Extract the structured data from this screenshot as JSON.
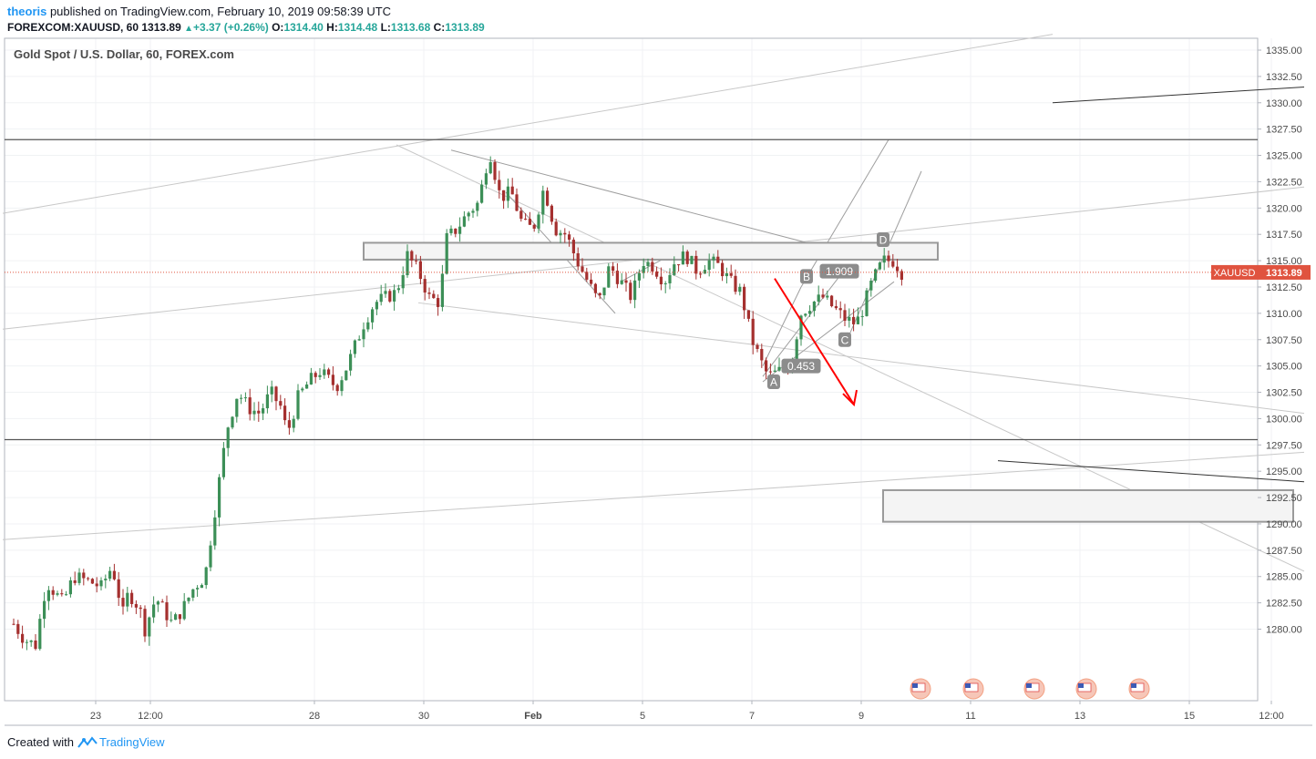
{
  "header": {
    "author": "theoris",
    "published_text": " published on TradingView.com, February 10, 2019 09:58:39 UTC"
  },
  "quote": {
    "symbol": "FOREXCOM:XAUUSD, 60",
    "last": "1313.89",
    "change": "+3.37 (+0.26%)",
    "o_label": "O:",
    "o": "1314.40",
    "h_label": "H:",
    "h": "1314.48",
    "l_label": "L:",
    "l": "1313.68",
    "c_label": "C:",
    "c": "1313.89"
  },
  "pane_title": "Gold Spot / U.S. Dollar, 60, FOREX.com",
  "footer": {
    "created_with": "Created with",
    "brand": "TradingView"
  },
  "colors": {
    "up": "#26a69a",
    "down": "#ef5350",
    "candle_up": "#3c8f57",
    "candle_down": "#a5302f",
    "arrow": "#ff0000",
    "price_label": "#e0533f"
  },
  "chart_data": {
    "type": "candlestick",
    "symbol": "XAUUSD",
    "interval": "60",
    "last_price": 1313.89,
    "price_label": "XAUUSD",
    "ylim": [
      1277.5,
      1336.0
    ],
    "y_ticks": [
      "1335.00",
      "1332.50",
      "1330.00",
      "1327.50",
      "1325.00",
      "1322.50",
      "1320.00",
      "1317.50",
      "1315.00",
      "1312.50",
      "1310.00",
      "1307.50",
      "1305.00",
      "1302.50",
      "1300.00",
      "1297.50",
      "1295.00",
      "1292.50",
      "1290.00",
      "1287.50",
      "1285.00",
      "1282.50",
      "1280.00"
    ],
    "x_ticks": [
      {
        "label": "23",
        "day": 0.75
      },
      {
        "label": "12:00",
        "day": 1.25
      },
      {
        "label": "28",
        "day": 2.75
      },
      {
        "label": "30",
        "day": 3.75
      },
      {
        "label": "Feb",
        "day": 4.75
      },
      {
        "label": "5",
        "day": 5.75
      },
      {
        "label": "7",
        "day": 6.75
      },
      {
        "label": "9",
        "day": 7.75
      },
      {
        "label": "11",
        "day": 8.75
      },
      {
        "label": "13",
        "day": 9.75
      },
      {
        "label": "15",
        "day": 10.75
      },
      {
        "label": "12:00",
        "day": 11.5
      }
    ],
    "price_path": [
      [
        0.0,
        1280.5
      ],
      [
        0.1,
        1279.0
      ],
      [
        0.2,
        1278.5
      ],
      [
        0.3,
        1284.5
      ],
      [
        0.45,
        1282.5
      ],
      [
        0.55,
        1285.0
      ],
      [
        0.7,
        1284.5
      ],
      [
        0.8,
        1284.0
      ],
      [
        0.9,
        1286.0
      ],
      [
        1.0,
        1281.5
      ],
      [
        1.05,
        1283.5
      ],
      [
        1.15,
        1282.0
      ],
      [
        1.2,
        1280.0
      ],
      [
        1.3,
        1283.0
      ],
      [
        1.45,
        1280.5
      ],
      [
        1.55,
        1282.0
      ],
      [
        1.65,
        1284.0
      ],
      [
        1.75,
        1285.0
      ],
      [
        1.85,
        1292.0
      ],
      [
        1.95,
        1299.0
      ],
      [
        2.05,
        1302.5
      ],
      [
        2.15,
        1301.0
      ],
      [
        2.25,
        1300.5
      ],
      [
        2.35,
        1302.5
      ],
      [
        2.45,
        1301.0
      ],
      [
        2.5,
        1298.5
      ],
      [
        2.6,
        1302.0
      ],
      [
        2.7,
        1303.5
      ],
      [
        2.8,
        1304.5
      ],
      [
        2.95,
        1303.0
      ],
      [
        3.05,
        1305.0
      ],
      [
        3.2,
        1309.0
      ],
      [
        3.3,
        1311.0
      ],
      [
        3.4,
        1311.5
      ],
      [
        3.5,
        1312.0
      ],
      [
        3.6,
        1315.5
      ],
      [
        3.7,
        1314.0
      ],
      [
        3.8,
        1311.5
      ],
      [
        3.9,
        1311.0
      ],
      [
        3.95,
        1317.0
      ],
      [
        4.05,
        1318.0
      ],
      [
        4.15,
        1319.5
      ],
      [
        4.25,
        1320.5
      ],
      [
        4.35,
        1325.5
      ],
      [
        4.45,
        1321.0
      ],
      [
        4.55,
        1321.5
      ],
      [
        4.65,
        1318.5
      ],
      [
        4.75,
        1318.0
      ],
      [
        4.85,
        1322.0
      ],
      [
        4.95,
        1318.0
      ],
      [
        5.05,
        1317.5
      ],
      [
        5.15,
        1315.0
      ],
      [
        5.25,
        1313.0
      ],
      [
        5.35,
        1311.0
      ],
      [
        5.45,
        1314.5
      ],
      [
        5.55,
        1313.0
      ],
      [
        5.65,
        1311.5
      ],
      [
        5.75,
        1315.0
      ],
      [
        5.85,
        1314.5
      ],
      [
        5.95,
        1313.0
      ],
      [
        6.05,
        1315.0
      ],
      [
        6.15,
        1315.5
      ],
      [
        6.25,
        1314.0
      ],
      [
        6.35,
        1315.0
      ],
      [
        6.45,
        1314.5
      ],
      [
        6.55,
        1313.0
      ],
      [
        6.65,
        1312.0
      ],
      [
        6.75,
        1307.5
      ],
      [
        6.85,
        1305.0
      ],
      [
        6.9,
        1304.0
      ],
      [
        7.0,
        1304.5
      ],
      [
        7.1,
        1305.0
      ],
      [
        7.2,
        1310.0
      ],
      [
        7.3,
        1311.0
      ],
      [
        7.4,
        1311.5
      ],
      [
        7.5,
        1310.5
      ],
      [
        7.6,
        1309.5
      ],
      [
        7.7,
        1309.0
      ],
      [
        7.75,
        1310.0
      ],
      [
        7.85,
        1313.0
      ],
      [
        7.95,
        1315.0
      ],
      [
        8.05,
        1315.0
      ],
      [
        8.12,
        1313.89
      ]
    ],
    "horizontal_lines": [
      1326.5,
      1298.0
    ],
    "zones": [
      {
        "from_day": 3.2,
        "to_day": 8.45,
        "top": 1316.7,
        "bottom": 1315.1
      },
      {
        "from_day": 7.95,
        "to_day": 11.7,
        "top": 1293.2,
        "bottom": 1290.2
      }
    ],
    "harmonic_labels": [
      {
        "text": "A",
        "day": 6.95,
        "price": 1303.5
      },
      {
        "text": "B",
        "day": 7.25,
        "price": 1313.5
      },
      {
        "text": "C",
        "day": 7.6,
        "price": 1307.5
      },
      {
        "text": "D",
        "day": 7.95,
        "price": 1317.0
      },
      {
        "text": "0.453",
        "day": 7.2,
        "price": 1305.0
      },
      {
        "text": "1.909",
        "day": 7.55,
        "price": 1314.0
      }
    ]
  }
}
